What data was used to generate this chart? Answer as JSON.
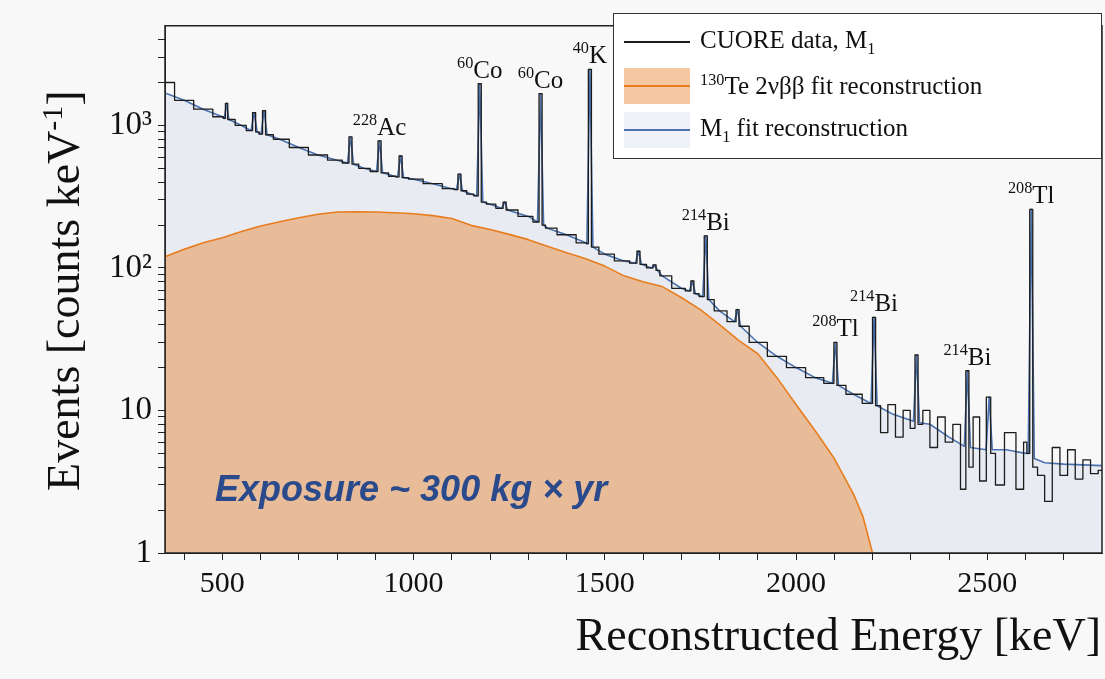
{
  "chart_data": {
    "type": "step",
    "xlabel": "Reconstructed Energy [keV]",
    "ylabel": "Events [counts keV$^{-1}$]",
    "xlim": [
      350,
      2800
    ],
    "xticks": [
      {
        "value": 400,
        "label": null
      },
      500,
      {
        "value": 600,
        "label": null
      },
      {
        "value": 700,
        "label": null
      },
      {
        "value": 800,
        "label": null
      },
      {
        "value": 900,
        "label": null
      },
      1000,
      {
        "value": 1100,
        "label": null
      },
      {
        "value": 1200,
        "label": null
      },
      {
        "value": 1300,
        "label": null
      },
      {
        "value": 1400,
        "label": null
      },
      1500,
      {
        "value": 1600,
        "label": null
      },
      {
        "value": 1700,
        "label": null
      },
      {
        "value": 1800,
        "label": null
      },
      {
        "value": 1900,
        "label": null
      },
      2000,
      {
        "value": 2100,
        "label": null
      },
      {
        "value": 2200,
        "label": null
      },
      {
        "value": 2300,
        "label": null
      },
      {
        "value": 2400,
        "label": null
      },
      2500,
      {
        "value": 2600,
        "label": null
      },
      {
        "value": 2700,
        "label": null
      }
    ],
    "ylim": [
      1,
      5000
    ],
    "log": "y",
    "yticks": [
      1,
      {
        "value": 2,
        "label": null
      },
      {
        "value": 3,
        "label": null
      },
      {
        "value": 4,
        "label": null
      },
      {
        "value": 5,
        "label": null
      },
      {
        "value": 6,
        "label": null
      },
      {
        "value": 7,
        "label": null
      },
      {
        "value": 8,
        "label": null
      },
      {
        "value": 9,
        "label": null
      },
      10,
      {
        "value": 20,
        "label": null
      },
      {
        "value": 30,
        "label": null
      },
      {
        "value": 40,
        "label": null
      },
      {
        "value": 50,
        "label": null
      },
      {
        "value": 60,
        "label": null
      },
      {
        "value": 70,
        "label": null
      },
      {
        "value": 80,
        "label": null
      },
      {
        "value": 90,
        "label": null
      },
      {
        "value": 100,
        "label": "10²"
      },
      {
        "value": 200,
        "label": null
      },
      {
        "value": 300,
        "label": null
      },
      {
        "value": 400,
        "label": null
      },
      {
        "value": 500,
        "label": null
      },
      {
        "value": 600,
        "label": null
      },
      {
        "value": 700,
        "label": null
      },
      {
        "value": 800,
        "label": null
      },
      {
        "value": 900,
        "label": null
      },
      {
        "value": 1000,
        "label": "10³"
      },
      {
        "value": 2000,
        "label": null
      },
      {
        "value": 3000,
        "label": null
      },
      {
        "value": 4000,
        "label": null
      }
    ],
    "legend": "top right",
    "series": [
      {
        "name": "CUORE data, M$_{1}$",
        "color": "#1c1c1c",
        "x": [
          350,
          400,
          450,
          500,
          505,
          511,
          517,
          550,
          575,
          583,
          591,
          601,
          609,
          617,
          650,
          700,
          750,
          800,
          827,
          835,
          843,
          870,
          903,
          911,
          919,
          950,
          958,
          966,
          974,
          1000,
          1050,
          1100,
          1112,
          1120,
          1128,
          1150,
          1165,
          1173,
          1181,
          1200,
          1230,
          1238,
          1246,
          1300,
          1324,
          1332,
          1340,
          1350,
          1400,
          1450,
          1453,
          1461,
          1469,
          1500,
          1550,
          1580,
          1588,
          1596,
          1622,
          1630,
          1638,
          1650,
          1700,
          1721,
          1729,
          1737,
          1756,
          1764,
          1772,
          1800,
          1839,
          1847,
          1855,
          1900,
          1950,
          2000,
          2050,
          2095,
          2103,
          2111,
          2150,
          2196,
          2204,
          2212,
          2230,
          2250,
          2270,
          2290,
          2307,
          2315,
          2323,
          2340,
          2360,
          2380,
          2400,
          2420,
          2440,
          2448,
          2456,
          2470,
          2490,
          2505,
          2513,
          2530,
          2560,
          2590,
          2600,
          2607,
          2615,
          2623,
          2640,
          2660,
          2680,
          2700,
          2720,
          2740,
          2760,
          2780,
          2800
        ],
        "values": [
          2000,
          1500,
          1300,
          1150,
          1120,
          1430,
          1100,
          1000,
          920,
          1230,
          900,
          870,
          1270,
          860,
          800,
          700,
          620,
          570,
          545,
          830,
          535,
          500,
          475,
          780,
          465,
          440,
          435,
          610,
          430,
          420,
          390,
          360,
          355,
          455,
          348,
          330,
          320,
          1960,
          290,
          280,
          262,
          290,
          255,
          230,
          210,
          1670,
          200,
          190,
          171,
          150,
          148,
          2470,
          140,
          125,
          112,
          108,
          131,
          106,
          100,
          105,
          96,
          88,
          72,
          69,
          81,
          66,
          63,
          168,
          60,
          50,
          42,
          51,
          39,
          30,
          24,
          20,
          17,
          15.5,
          30,
          15,
          13,
          11.2,
          45,
          10.8,
          7,
          11,
          6.5,
          10,
          7.5,
          24.5,
          8,
          10,
          5.5,
          9,
          6,
          8,
          2.8,
          19,
          4,
          9,
          3.2,
          12.4,
          5,
          3,
          7,
          2.8,
          6,
          5,
          258,
          4,
          3.5,
          2.3,
          5.5,
          3.5,
          5.3,
          3.3,
          4.5,
          3.6,
          3.8
        ]
      },
      {
        "name": "$^{130}$Te 2νββ fit reconstruction",
        "type": "area",
        "color": "#e87d1e",
        "x": [
          350,
          400,
          450,
          500,
          550,
          600,
          650,
          700,
          750,
          800,
          850,
          900,
          950,
          1000,
          1050,
          1100,
          1150,
          1200,
          1250,
          1300,
          1350,
          1400,
          1450,
          1500,
          1550,
          1600,
          1650,
          1700,
          1750,
          1800,
          1850,
          1900,
          1950,
          2000,
          2050,
          2100,
          2150,
          2175,
          2200
        ],
        "values": [
          120,
          135,
          150,
          163,
          180,
          197,
          211,
          225,
          238,
          247,
          248,
          247,
          244,
          240,
          233,
          222,
          199,
          186,
          172,
          158,
          142,
          128,
          116,
          103,
          88,
          80,
          74,
          62,
          51,
          40,
          31,
          25,
          17,
          11,
          7.2,
          4.6,
          2.6,
          1.8,
          1
        ]
      },
      {
        "name": "M$_{1}$ fit reconstruction",
        "type": "area",
        "color": "#4a72b0",
        "x": [
          350,
          400,
          450,
          500,
          505,
          511,
          517,
          550,
          575,
          583,
          591,
          601,
          609,
          617,
          650,
          700,
          750,
          800,
          827,
          835,
          843,
          870,
          903,
          911,
          919,
          950,
          958,
          966,
          974,
          1000,
          1050,
          1100,
          1112,
          1120,
          1128,
          1150,
          1165,
          1173,
          1181,
          1200,
          1230,
          1238,
          1246,
          1300,
          1324,
          1332,
          1340,
          1350,
          1400,
          1450,
          1453,
          1461,
          1469,
          1500,
          1550,
          1580,
          1588,
          1596,
          1622,
          1630,
          1638,
          1650,
          1700,
          1721,
          1729,
          1737,
          1756,
          1764,
          1772,
          1800,
          1839,
          1847,
          1855,
          1900,
          1950,
          2000,
          2050,
          2095,
          2103,
          2111,
          2150,
          2196,
          2204,
          2212,
          2250,
          2307,
          2315,
          2323,
          2350,
          2400,
          2440,
          2448,
          2456,
          2497,
          2505,
          2513,
          2550,
          2600,
          2607,
          2615,
          2623,
          2650,
          2700,
          2750,
          2800
        ],
        "values": [
          1690,
          1500,
          1300,
          1150,
          1120,
          1430,
          1100,
          1000,
          920,
          1230,
          900,
          870,
          1270,
          860,
          800,
          700,
          620,
          570,
          545,
          830,
          535,
          500,
          475,
          780,
          465,
          440,
          435,
          610,
          430,
          420,
          390,
          360,
          355,
          455,
          348,
          330,
          320,
          1960,
          290,
          280,
          262,
          290,
          255,
          230,
          210,
          1670,
          200,
          190,
          171,
          150,
          148,
          2470,
          140,
          125,
          112,
          108,
          131,
          106,
          100,
          105,
          96,
          88,
          72,
          69,
          81,
          66,
          63,
          168,
          60,
          50,
          42,
          51,
          39,
          30,
          24,
          20,
          17,
          15.5,
          30,
          15,
          13,
          11.2,
          45,
          10.8,
          9.5,
          8.4,
          24.5,
          8.2,
          8,
          6.5,
          5.6,
          19,
          5.5,
          5.3,
          12.4,
          5.3,
          5.3,
          5,
          5,
          258,
          4.6,
          4.3,
          4.2,
          4.15,
          4.1
        ]
      }
    ],
    "annotations": [
      {
        "text": "$^{228}$Ac",
        "x": 911,
        "y": 780
      },
      {
        "text": "$^{60}$Co",
        "x": 1173,
        "y": 1960
      },
      {
        "text": "$^{60}$Co",
        "x": 1332,
        "y": 1670
      },
      {
        "text": "$^{40}$K",
        "x": 1461,
        "y": 2470
      },
      {
        "text": "$^{214}$Bi",
        "x": 1764,
        "y": 168
      },
      {
        "text": "$^{208}$Tl",
        "x": 2103,
        "y": 30
      },
      {
        "text": "$^{214}$Bi",
        "x": 2204,
        "y": 45
      },
      {
        "text": "$^{214}$Bi",
        "x": 2448,
        "y": 19
      },
      {
        "text": "$^{208}$Tl",
        "x": 2615,
        "y": 258
      },
      "Exposure ~ 300 kg × yr"
    ]
  }
}
